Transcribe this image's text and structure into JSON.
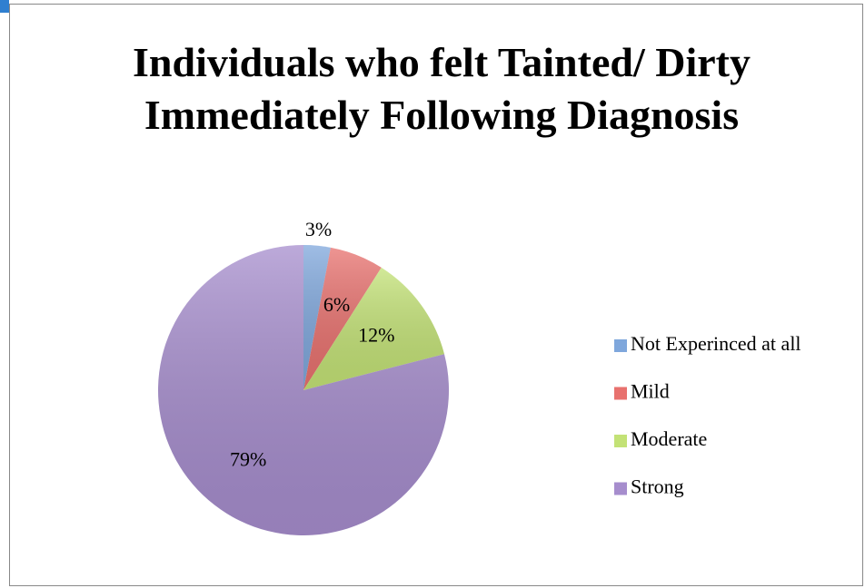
{
  "chart_data": {
    "type": "pie",
    "title": "Individuals who felt Tainted/ Dirty Immediately Following Diagnosis",
    "categories": [
      "Not Experinced at all",
      "Mild",
      "Moderate",
      "Strong"
    ],
    "values": [
      3,
      6,
      12,
      79
    ],
    "value_labels": [
      "3%",
      "6%",
      "12%",
      "79%"
    ],
    "colors": [
      "#7fa7dc",
      "#e8716e",
      "#c3e276",
      "#a68dcd"
    ],
    "legend": "right"
  }
}
